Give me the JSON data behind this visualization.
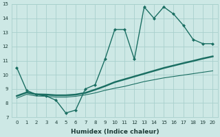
{
  "xlabel": "Humidex (Indice chaleur)",
  "xlim": [
    -0.5,
    20.5
  ],
  "ylim": [
    7,
    15
  ],
  "yticks": [
    7,
    8,
    9,
    10,
    11,
    12,
    13,
    14,
    15
  ],
  "xticks": [
    0,
    1,
    2,
    3,
    4,
    5,
    6,
    7,
    8,
    9,
    10,
    11,
    12,
    13,
    14,
    15,
    16,
    17,
    18,
    19,
    20
  ],
  "background_color": "#cde8e5",
  "grid_color": "#a8d0cc",
  "line_color": "#1a6e62",
  "series": [
    {
      "x": [
        0,
        1,
        2,
        3,
        4,
        5,
        6,
        7,
        8,
        9,
        10,
        11,
        12,
        13,
        14,
        15,
        16,
        17,
        18,
        19,
        20
      ],
      "y": [
        10.5,
        8.9,
        8.6,
        8.5,
        8.2,
        7.3,
        7.5,
        9.0,
        9.3,
        11.1,
        13.2,
        13.2,
        11.1,
        14.8,
        14.0,
        14.8,
        14.3,
        13.5,
        12.5,
        12.2,
        12.2
      ],
      "style": "-",
      "marker": "D",
      "markersize": 2.0,
      "linewidth": 1.0,
      "color": "#1a6e62"
    },
    {
      "x": [
        0,
        1,
        2,
        3,
        4,
        5,
        6,
        7,
        8,
        9,
        10,
        11,
        12,
        13,
        14,
        15,
        16,
        17,
        18,
        19,
        20
      ],
      "y": [
        8.5,
        8.75,
        8.62,
        8.6,
        8.55,
        8.55,
        8.6,
        8.72,
        8.95,
        9.2,
        9.48,
        9.68,
        9.88,
        10.08,
        10.28,
        10.48,
        10.65,
        10.82,
        10.98,
        11.15,
        11.3
      ],
      "style": "-",
      "marker": null,
      "linewidth": 1.8,
      "color": "#1a6e62"
    },
    {
      "x": [
        0,
        1,
        2,
        3,
        4,
        5,
        6,
        7,
        8,
        9,
        10,
        11,
        12,
        13,
        14,
        15,
        16,
        17,
        18,
        19,
        20
      ],
      "y": [
        8.35,
        8.62,
        8.5,
        8.48,
        8.42,
        8.42,
        8.48,
        8.58,
        8.72,
        8.9,
        9.05,
        9.18,
        9.35,
        9.52,
        9.65,
        9.78,
        9.88,
        9.98,
        10.08,
        10.18,
        10.28
      ],
      "style": "-",
      "marker": null,
      "linewidth": 0.8,
      "color": "#1a6e62"
    }
  ],
  "xlabel_fontsize": 6.5,
  "xlabel_fontweight": "bold",
  "tick_fontsize": 5.0,
  "tick_color": "#1a3a35",
  "xlabel_color": "#1a3a35"
}
